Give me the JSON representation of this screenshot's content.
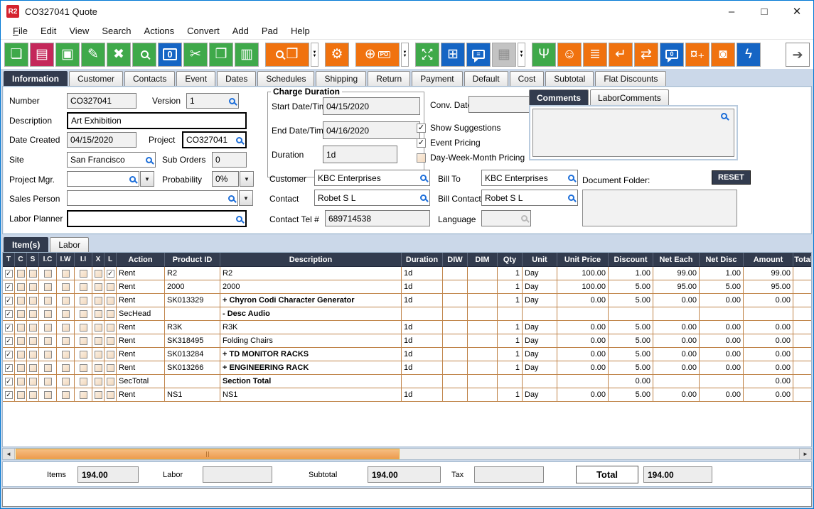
{
  "window": {
    "title": "CO327041 Quote",
    "logo": "R2",
    "controls": {
      "minimize": "–",
      "maximize": "□",
      "close": "✕"
    }
  },
  "menu": {
    "items": [
      "File",
      "Edit",
      "View",
      "Search",
      "Actions",
      "Convert",
      "Add",
      "Pad",
      "Help"
    ]
  },
  "colors": {
    "green": "#3FA94A",
    "crimson": "#C4275A",
    "blue": "#1565C4",
    "orange": "#F0720F",
    "disabled": "#C3C3C3",
    "navy": "#323B4E",
    "grid": "#C08449",
    "red_highlight": "#A6121F",
    "purple_highlight": "#5B5090",
    "thumb_orange": "#F2A964"
  },
  "toolbar": {
    "buttons": [
      {
        "name": "new-document-button",
        "color": "green",
        "glyph": "❏"
      },
      {
        "name": "print-button",
        "color": "crimson",
        "glyph": "▤"
      },
      {
        "name": "save-button",
        "color": "green",
        "glyph": "▣"
      },
      {
        "name": "edit-button",
        "color": "green",
        "glyph": "✎"
      },
      {
        "name": "delete-button",
        "color": "green",
        "glyph": "✖"
      },
      {
        "name": "search-button",
        "color": "green",
        "icon": "mag"
      },
      {
        "name": "copy-count-button",
        "color": "blue",
        "boxed": "0"
      },
      {
        "name": "cut-button",
        "color": "green",
        "glyph": "✂"
      },
      {
        "name": "copy-button",
        "color": "green",
        "glyph": "❐"
      },
      {
        "name": "paste-button",
        "color": "green",
        "glyph": "▥"
      },
      {
        "type": "gap"
      },
      {
        "name": "find-product-button",
        "color": "orange",
        "icon": "mag",
        "glyph": "❒",
        "wide": true
      },
      {
        "name": "find-product-dropdown",
        "type": "dropdown"
      },
      {
        "type": "gap"
      },
      {
        "name": "options-gears-button",
        "color": "orange",
        "glyph": "⚙"
      },
      {
        "type": "gap"
      },
      {
        "name": "add-purchase-order-button",
        "color": "orange",
        "glyph": "⊕",
        "po": "PO",
        "wide": true
      },
      {
        "name": "add-purchase-order-dropdown",
        "type": "dropdown"
      },
      {
        "type": "gap"
      },
      {
        "name": "expand-button",
        "color": "green",
        "glyph": "↖↗\n↙↘",
        "small": true
      },
      {
        "name": "modules-button",
        "color": "blue",
        "glyph": "⊞"
      },
      {
        "name": "comments-button",
        "color": "blue",
        "bubble": "≡"
      },
      {
        "name": "calendar-button",
        "color": "disabled",
        "glyph": "▦"
      },
      {
        "name": "calendar-dropdown",
        "type": "dropdown"
      },
      {
        "type": "gap"
      },
      {
        "name": "hierarchy-button",
        "color": "green",
        "glyph": "Ψ"
      },
      {
        "name": "smiley-button",
        "color": "orange",
        "glyph": "☺"
      },
      {
        "name": "notes-scroll-button",
        "color": "orange",
        "glyph": "≣"
      },
      {
        "name": "return-button",
        "color": "orange",
        "glyph": "↵"
      },
      {
        "name": "export-box-button",
        "color": "orange",
        "glyph": "⇄"
      },
      {
        "name": "message-count-button",
        "color": "blue",
        "bubble": "0"
      },
      {
        "name": "add-currency-button",
        "color": "orange",
        "glyph": "¤₊"
      },
      {
        "name": "vault-button",
        "color": "orange",
        "glyph": "◙"
      },
      {
        "name": "lightning-button",
        "color": "blue",
        "glyph": "ϟ"
      }
    ],
    "exit": {
      "name": "exit-button",
      "glyph": "➔"
    }
  },
  "main_tabs": {
    "selected": "Information",
    "items": [
      "Information",
      "Customer",
      "Contacts",
      "Event",
      "Dates",
      "Schedules",
      "Shipping",
      "Return",
      "Payment",
      "Default",
      "Cost",
      "Subtotal",
      "Flat Discounts"
    ]
  },
  "form": {
    "number": {
      "label": "Number",
      "value": "CO327041"
    },
    "version": {
      "label": "Version",
      "value": "1"
    },
    "description": {
      "label": "Description",
      "value": "Art Exhibition"
    },
    "date_created": {
      "label": "Date Created",
      "value": "04/15/2020"
    },
    "project": {
      "label": "Project",
      "value": "CO327041"
    },
    "site": {
      "label": "Site",
      "value": "San Francisco"
    },
    "sub_orders": {
      "label": "Sub Orders",
      "value": "0"
    },
    "project_mgr": {
      "label": "Project Mgr.",
      "value": ""
    },
    "probability": {
      "label": "Probability",
      "value": "0%"
    },
    "sales_person": {
      "label": "Sales Person",
      "value": ""
    },
    "labor_planner": {
      "label": "Labor Planner",
      "value": ""
    },
    "charge_duration": {
      "legend": "Charge Duration",
      "start": {
        "label": "Start Date/Time",
        "value": "04/15/2020"
      },
      "end": {
        "label": "End Date/Time",
        "value": "04/16/2020"
      },
      "duration": {
        "label": "Duration",
        "value": "1d"
      }
    },
    "conv_date": {
      "label": "Conv. Date",
      "value": ""
    },
    "show_suggestions": {
      "label": "Show Suggestions",
      "checked": true
    },
    "event_pricing": {
      "label": "Event Pricing",
      "checked": true
    },
    "day_week_month": {
      "label": "Day-Week-Month Pricing",
      "checked": false
    },
    "customer": {
      "label": "Customer",
      "value": "KBC Enterprises"
    },
    "bill_to": {
      "label": "Bill To",
      "value": "KBC Enterprises"
    },
    "contact": {
      "label": "Contact",
      "value": "Robet S L"
    },
    "bill_contact": {
      "label": "Bill Contact",
      "value": "Robet S L"
    },
    "contact_tel": {
      "label": "Contact Tel #",
      "value": "689714538"
    },
    "language": {
      "label": "Language",
      "value": ""
    }
  },
  "comments_panel": {
    "tabs": [
      {
        "label": "Comments",
        "selected": true
      },
      {
        "label": "LaborComments",
        "selected": false
      }
    ],
    "text": ""
  },
  "document_folder": {
    "label": "Document Folder:",
    "reset": "RESET",
    "path": ""
  },
  "items_panel": {
    "tabs": [
      {
        "label": "Item(s)",
        "selected": true
      },
      {
        "label": "Labor",
        "selected": false
      }
    ]
  },
  "table": {
    "checkbox_columns": [
      "T",
      "C",
      "S",
      "I.C",
      "I.W",
      "I.I",
      "X",
      "L"
    ],
    "columns": [
      "Action",
      "Product ID",
      "Description",
      "Duration",
      "DIW",
      "DIM",
      "Qty",
      "Unit",
      "Unit Price",
      "Discount",
      "Net Each",
      "Net Disc",
      "Amount",
      "Total"
    ],
    "rows": [
      {
        "checks": [
          true,
          false,
          false,
          false,
          false,
          false,
          false,
          true
        ],
        "action": "Rent",
        "product_id": "R2",
        "description": "R2",
        "bold": false,
        "duration": "1d",
        "diw": "",
        "dim": "",
        "qty": "1",
        "unit": "Day",
        "unit_price": "100.00",
        "discount": "1.00",
        "net_each": "99.00",
        "net_disc": "1.00",
        "amount": "99.00",
        "total": "",
        "highlight": null
      },
      {
        "checks": [
          true,
          false,
          false,
          false,
          false,
          false,
          false,
          false
        ],
        "action": "Rent",
        "product_id": "2000",
        "description": "2000",
        "bold": false,
        "duration": "1d",
        "diw": "",
        "dim": "",
        "qty": "1",
        "unit": "Day",
        "unit_price": "100.00",
        "discount": "5.00",
        "net_each": "95.00",
        "net_disc": "5.00",
        "amount": "95.00",
        "total": "",
        "highlight": null
      },
      {
        "checks": [
          true,
          false,
          false,
          false,
          false,
          false,
          false,
          false
        ],
        "action": "Rent",
        "product_id": "SK013329",
        "description": "+  Chyron Codi Character Generator",
        "bold": true,
        "duration": "1d",
        "diw": "",
        "dim": "",
        "qty": "1",
        "unit": "Day",
        "unit_price": "0.00",
        "discount": "5.00",
        "net_each": "0.00",
        "net_disc": "0.00",
        "amount": "0.00",
        "total": "",
        "highlight": null
      },
      {
        "checks": [
          true,
          false,
          false,
          false,
          false,
          false,
          false,
          false
        ],
        "action": "SecHead",
        "product_id": "",
        "description": "-  Desc Audio",
        "bold": true,
        "duration": "",
        "diw": "",
        "dim": "",
        "qty": "",
        "unit": "",
        "unit_price": "",
        "discount": "",
        "net_each": "",
        "net_disc": "",
        "amount": "",
        "total": "",
        "highlight": "red"
      },
      {
        "checks": [
          true,
          false,
          false,
          false,
          false,
          false,
          false,
          false
        ],
        "action": "Rent",
        "product_id": "R3K",
        "description": "R3K",
        "bold": false,
        "duration": "1d",
        "diw": "",
        "dim": "",
        "qty": "1",
        "unit": "Day",
        "unit_price": "0.00",
        "discount": "5.00",
        "net_each": "0.00",
        "net_disc": "0.00",
        "amount": "0.00",
        "total": "",
        "highlight": null
      },
      {
        "checks": [
          true,
          false,
          false,
          false,
          false,
          false,
          false,
          false
        ],
        "action": "Rent",
        "product_id": "SK318495",
        "description": "Folding Chairs",
        "bold": false,
        "duration": "1d",
        "diw": "",
        "dim": "",
        "qty": "1",
        "unit": "Day",
        "unit_price": "0.00",
        "discount": "5.00",
        "net_each": "0.00",
        "net_disc": "0.00",
        "amount": "0.00",
        "total": "",
        "highlight": null
      },
      {
        "checks": [
          true,
          false,
          false,
          false,
          false,
          false,
          false,
          false
        ],
        "action": "Rent",
        "product_id": "SK013284",
        "description": "+  TD MONITOR RACKS",
        "bold": true,
        "duration": "1d",
        "diw": "",
        "dim": "",
        "qty": "1",
        "unit": "Day",
        "unit_price": "0.00",
        "discount": "5.00",
        "net_each": "0.00",
        "net_disc": "0.00",
        "amount": "0.00",
        "total": "",
        "highlight": "purple-top"
      },
      {
        "checks": [
          true,
          false,
          false,
          false,
          false,
          false,
          false,
          false
        ],
        "action": "Rent",
        "product_id": "SK013266",
        "description": "+  ENGINEERING RACK",
        "bold": true,
        "duration": "1d",
        "diw": "",
        "dim": "",
        "qty": "1",
        "unit": "Day",
        "unit_price": "0.00",
        "discount": "5.00",
        "net_each": "0.00",
        "net_disc": "0.00",
        "amount": "0.00",
        "total": "",
        "highlight": "purple-bottom"
      },
      {
        "checks": [
          true,
          false,
          false,
          false,
          false,
          false,
          false,
          false
        ],
        "action": "SecTotal",
        "product_id": "",
        "description": "Section Total",
        "bold": true,
        "duration": "",
        "diw": "",
        "dim": "",
        "qty": "",
        "unit": "",
        "unit_price": "",
        "discount": "0.00",
        "net_each": "",
        "net_disc": "",
        "amount": "0.00",
        "total": "",
        "highlight": null
      },
      {
        "checks": [
          true,
          false,
          false,
          false,
          false,
          false,
          false,
          false
        ],
        "action": "Rent",
        "product_id": "NS1",
        "description": "NS1",
        "bold": false,
        "duration": "1d",
        "diw": "",
        "dim": "",
        "qty": "1",
        "unit": "Day",
        "unit_price": "0.00",
        "discount": "5.00",
        "net_each": "0.00",
        "net_disc": "0.00",
        "amount": "0.00",
        "total": "",
        "highlight": null
      }
    ]
  },
  "summary": {
    "items_label": "Items",
    "items_value": "194.00",
    "labor_label": "Labor",
    "labor_value": "",
    "subtotal_label": "Subtotal",
    "subtotal_value": "194.00",
    "tax_label": "Tax",
    "tax_value": "",
    "total_label": "Total",
    "total_value": "194.00"
  }
}
